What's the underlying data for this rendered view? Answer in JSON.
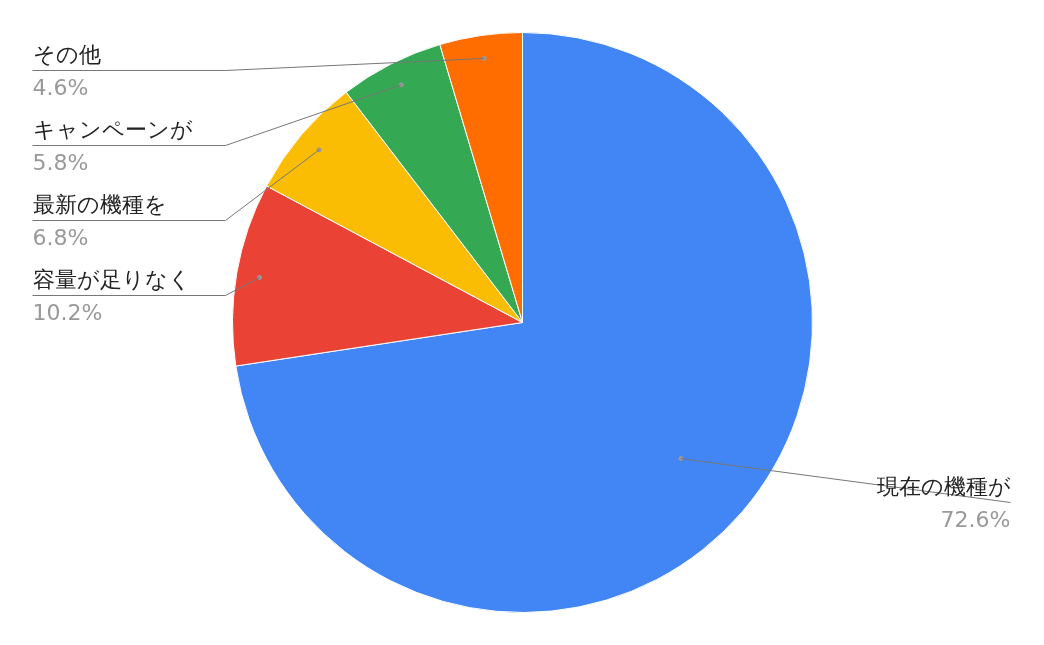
{
  "chart_data": {
    "type": "pie",
    "categories": [
      "現在の機種が",
      "容量が足りなく",
      "最新の機種を",
      "キャンペーンが",
      "その他"
    ],
    "values": [
      72.6,
      10.2,
      6.8,
      5.8,
      4.6
    ],
    "colors": [
      "#4285f4",
      "#ea4335",
      "#fbbc04",
      "#34a853",
      "#ff6d01"
    ],
    "value_labels": [
      "72.6%",
      "10.2%",
      "6.8%",
      "5.8%",
      "4.6%"
    ]
  }
}
